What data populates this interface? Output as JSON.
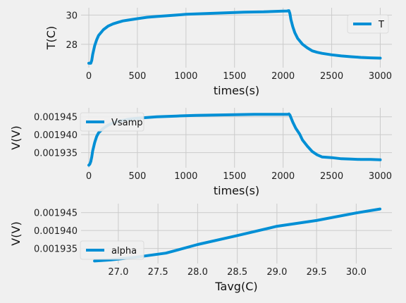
{
  "chart_data": [
    {
      "type": "line",
      "xlabel": "times(s)",
      "ylabel": "T(C)",
      "xlim": [
        -80,
        3120
      ],
      "ylim": [
        26.4,
        30.5
      ],
      "xticks": [
        0,
        500,
        1000,
        1500,
        2000,
        2500,
        3000
      ],
      "xtick_labels": [
        "0",
        "500",
        "1000",
        "1500",
        "2000",
        "2500",
        "3000"
      ],
      "yticks": [
        28,
        30
      ],
      "ytick_labels": [
        "28",
        "30"
      ],
      "grid": true,
      "legend": "upper right",
      "color": "#008fd5",
      "series": [
        {
          "name": "T",
          "x": [
            0,
            10,
            20,
            30,
            40,
            60,
            80,
            100,
            150,
            200,
            250,
            300,
            350,
            400,
            500,
            600,
            700,
            800,
            900,
            1000,
            1200,
            1400,
            1600,
            1800,
            1900,
            2000,
            2040,
            2060,
            2070,
            2080,
            2100,
            2120,
            2150,
            2200,
            2250,
            2300,
            2350,
            2400,
            2500,
            2600,
            2700,
            2800,
            2900,
            3000
          ],
          "y": [
            26.7,
            26.7,
            26.7,
            26.9,
            27.3,
            27.9,
            28.3,
            28.6,
            29.0,
            29.25,
            29.4,
            29.5,
            29.6,
            29.65,
            29.75,
            29.85,
            29.9,
            29.95,
            30.0,
            30.05,
            30.1,
            30.15,
            30.2,
            30.22,
            30.25,
            30.27,
            30.28,
            30.3,
            30.1,
            29.7,
            29.2,
            28.8,
            28.4,
            28.0,
            27.75,
            27.55,
            27.45,
            27.38,
            27.28,
            27.2,
            27.15,
            27.1,
            27.07,
            27.05
          ]
        }
      ]
    },
    {
      "type": "line",
      "xlabel": "times(s)",
      "ylabel": "V(V)",
      "xlim": [
        -80,
        3120
      ],
      "ylim": [
        0.0019308,
        0.0019475
      ],
      "xticks": [
        0,
        500,
        1000,
        1500,
        2000,
        2500,
        3000
      ],
      "xtick_labels": [
        "0",
        "500",
        "1000",
        "1500",
        "2000",
        "2500",
        "3000"
      ],
      "yticks": [
        0.001935,
        0.00194,
        0.001945
      ],
      "ytick_labels": [
        "0.001935",
        "0.001940",
        "0.001945"
      ],
      "grid": true,
      "legend": "upper left",
      "color": "#008fd5",
      "series": [
        {
          "name": "Vsamp",
          "x": [
            0,
            10,
            20,
            30,
            40,
            60,
            80,
            100,
            150,
            200,
            250,
            300,
            400,
            500,
            700,
            900,
            1100,
            1300,
            1500,
            1700,
            1900,
            2000,
            2050,
            2060,
            2070,
            2080,
            2100,
            2130,
            2170,
            2200,
            2250,
            2300,
            2350,
            2400,
            2500,
            2600,
            2700,
            2800,
            2900,
            3000
          ],
          "y": [
            0.0019315,
            0.0019318,
            0.0019325,
            0.0019338,
            0.0019355,
            0.0019378,
            0.0019395,
            0.0019405,
            0.0019418,
            0.0019427,
            0.0019433,
            0.0019437,
            0.0019443,
            0.0019446,
            0.001945,
            0.0019452,
            0.0019454,
            0.0019455,
            0.0019456,
            0.0019457,
            0.0019457,
            0.0019457,
            0.0019457,
            0.0019458,
            0.0019455,
            0.0019448,
            0.0019435,
            0.0019418,
            0.0019402,
            0.0019385,
            0.0019368,
            0.0019353,
            0.0019344,
            0.0019338,
            0.0019336,
            0.0019333,
            0.0019332,
            0.0019331,
            0.0019331,
            0.001933
          ]
        }
      ]
    },
    {
      "type": "line",
      "xlabel": "Tavg(C)",
      "ylabel": "V(V)",
      "xlim": [
        26.53,
        30.45
      ],
      "ylim": [
        0.0019308,
        0.0019475
      ],
      "xticks": [
        27.0,
        27.5,
        28.0,
        28.5,
        29.0,
        29.5,
        30.0
      ],
      "xtick_labels": [
        "27.0",
        "27.5",
        "28.0",
        "28.5",
        "29.0",
        "29.5",
        "30.0"
      ],
      "yticks": [
        0.001935,
        0.00194,
        0.001945
      ],
      "ytick_labels": [
        "0.001935",
        "0.001940",
        "0.001945"
      ],
      "grid": true,
      "legend": "lower left",
      "color": "#008fd5",
      "series": [
        {
          "name": "alpha",
          "x": [
            26.7,
            26.9,
            27.2,
            27.6,
            28.0,
            28.5,
            29.0,
            29.5,
            30.0,
            30.3
          ],
          "y": [
            0.0019315,
            0.0019318,
            0.0019325,
            0.0019337,
            0.0019361,
            0.0019386,
            0.0019412,
            0.0019428,
            0.0019449,
            0.001946
          ]
        }
      ]
    }
  ]
}
